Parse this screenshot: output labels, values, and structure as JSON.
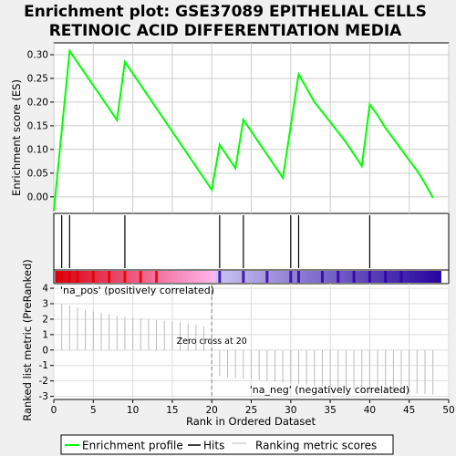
{
  "chart_data": {
    "type": "line",
    "title_line1": "Enrichment plot: GSE37089 EPITHELIAL CELLS",
    "title_line2": "RETINOIC ACID DIFFERENTIATION MEDIA",
    "xlabel": "Rank in Ordered Dataset",
    "ylabel_top": "Enrichment score (ES)",
    "ylabel_bottom": "Ranked list metric (PreRanked)",
    "xlim": [
      0,
      50
    ],
    "ylim_top": [
      -0.035,
      0.325
    ],
    "ylim_bottom": [
      -3.2,
      4.3
    ],
    "x_ticks": [
      0,
      5,
      10,
      15,
      20,
      25,
      30,
      35,
      40,
      45,
      50
    ],
    "y_ticks_top": [
      0.0,
      0.05,
      0.1,
      0.15,
      0.2,
      0.25,
      0.3
    ],
    "y_tick_labels_top": [
      "0.00",
      "0.05",
      "0.10",
      "0.15",
      "0.20",
      "0.25",
      "0.30"
    ],
    "y_ticks_bottom": [
      4,
      3,
      2,
      1,
      0,
      -1,
      -2,
      -3
    ],
    "grid": true,
    "series": [
      {
        "name": "Enrichment profile",
        "color": "#00ff00",
        "x": [
          0,
          2,
          8,
          9,
          20,
          21,
          23,
          24,
          29,
          31,
          33,
          35,
          37,
          39,
          40,
          41,
          42,
          44,
          45,
          46,
          47,
          48
        ],
        "values": [
          -0.03,
          0.308,
          0.162,
          0.285,
          0.015,
          0.11,
          0.06,
          0.163,
          0.04,
          0.259,
          0.2,
          0.158,
          0.115,
          0.065,
          0.195,
          0.172,
          0.145,
          0.1,
          0.077,
          0.055,
          0.028,
          -0.002
        ]
      }
    ],
    "hits": [
      1,
      2,
      9,
      21,
      24,
      30,
      31,
      40
    ],
    "ranked_metric": [
      {
        "x": 1,
        "v": 3.0
      },
      {
        "x": 2,
        "v": 2.9
      },
      {
        "x": 3,
        "v": 2.75
      },
      {
        "x": 4,
        "v": 2.6
      },
      {
        "x": 5,
        "v": 2.5
      },
      {
        "x": 6,
        "v": 2.4
      },
      {
        "x": 7,
        "v": 2.3
      },
      {
        "x": 8,
        "v": 2.2
      },
      {
        "x": 9,
        "v": 2.15
      },
      {
        "x": 10,
        "v": 2.1
      },
      {
        "x": 11,
        "v": 2.05
      },
      {
        "x": 12,
        "v": 2.0
      },
      {
        "x": 13,
        "v": 1.95
      },
      {
        "x": 14,
        "v": 1.9
      },
      {
        "x": 15,
        "v": 1.85
      },
      {
        "x": 16,
        "v": 1.78
      },
      {
        "x": 17,
        "v": 1.72
      },
      {
        "x": 18,
        "v": 1.65
      },
      {
        "x": 19,
        "v": 1.55
      },
      {
        "x": 21,
        "v": -1.7
      },
      {
        "x": 22,
        "v": -1.75
      },
      {
        "x": 23,
        "v": -1.8
      },
      {
        "x": 24,
        "v": -1.85
      },
      {
        "x": 25,
        "v": -1.9
      },
      {
        "x": 26,
        "v": -1.95
      },
      {
        "x": 27,
        "v": -2.0
      },
      {
        "x": 28,
        "v": -2.05
      },
      {
        "x": 29,
        "v": -2.1
      },
      {
        "x": 30,
        "v": -2.15
      },
      {
        "x": 31,
        "v": -2.2
      },
      {
        "x": 32,
        "v": -2.25
      },
      {
        "x": 33,
        "v": -2.3
      },
      {
        "x": 34,
        "v": -2.35
      },
      {
        "x": 35,
        "v": -2.4
      },
      {
        "x": 36,
        "v": -2.45
      },
      {
        "x": 37,
        "v": -2.5
      },
      {
        "x": 38,
        "v": -2.55
      },
      {
        "x": 39,
        "v": -2.6
      },
      {
        "x": 40,
        "v": -2.65
      },
      {
        "x": 41,
        "v": -2.7
      },
      {
        "x": 42,
        "v": -2.72
      },
      {
        "x": 43,
        "v": -2.75
      },
      {
        "x": 44,
        "v": -2.78
      },
      {
        "x": 45,
        "v": -2.8
      },
      {
        "x": 46,
        "v": -2.82
      },
      {
        "x": 47,
        "v": -2.85
      },
      {
        "x": 48,
        "v": -2.88
      }
    ],
    "zero_cross_x": 20,
    "zero_cross_label": "Zero cross at 20",
    "pos_label": "'na_pos' (positively correlated)",
    "neg_label": "'na_neg' (negatively correlated)",
    "pos_color": "#cc0000",
    "neg_color": "#0000cc",
    "legend": {
      "placement": "bottom",
      "entries": [
        {
          "label": "Enrichment profile",
          "color": "#00ff00"
        },
        {
          "label": "Hits",
          "color": "#000000"
        },
        {
          "label": "Ranking metric scores",
          "color": "#bbbbbb"
        }
      ]
    }
  }
}
